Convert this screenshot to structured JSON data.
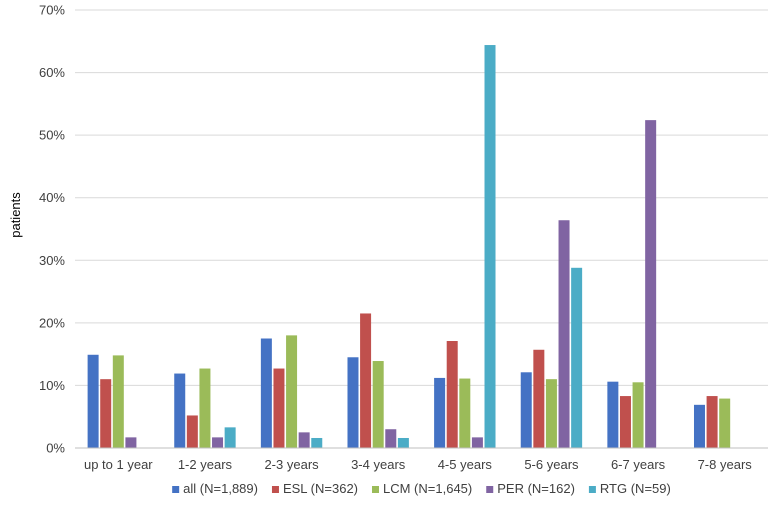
{
  "chart_data": {
    "type": "bar",
    "title": "",
    "xlabel": "",
    "ylabel": "patients",
    "ylim": [
      0,
      70
    ],
    "yticks": [
      "0%",
      "10%",
      "20%",
      "30%",
      "40%",
      "50%",
      "60%",
      "70%"
    ],
    "grid": true,
    "legend_position": "bottom",
    "categories": [
      "up to 1 year",
      "1-2 years",
      "2-3 years",
      "3-4 years",
      "4-5 years",
      "5-6 years",
      "6-7 years",
      "7-8 years"
    ],
    "series": [
      {
        "name": "all (N=1,889)",
        "color": "#4472C4",
        "values": [
          14.9,
          11.9,
          17.5,
          14.5,
          11.2,
          12.1,
          10.6,
          6.9
        ]
      },
      {
        "name": "ESL (N=362)",
        "color": "#C0504D",
        "values": [
          11.0,
          5.2,
          12.7,
          21.5,
          17.1,
          15.7,
          8.3,
          8.3
        ]
      },
      {
        "name": "LCM (N=1,645)",
        "color": "#9BBB59",
        "values": [
          14.8,
          12.7,
          18.0,
          13.9,
          11.1,
          11.0,
          10.5,
          7.9
        ]
      },
      {
        "name": "PER (N=162)",
        "color": "#8064A2",
        "values": [
          1.7,
          1.7,
          2.5,
          3.0,
          1.7,
          36.4,
          52.4,
          0
        ]
      },
      {
        "name": "RTG (N=59)",
        "color": "#4BACC6",
        "values": [
          0,
          3.3,
          1.6,
          1.6,
          64.4,
          28.8,
          0,
          0
        ]
      }
    ]
  }
}
